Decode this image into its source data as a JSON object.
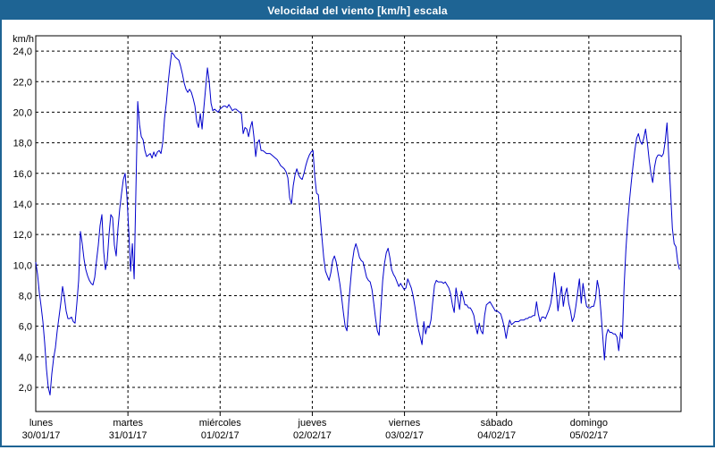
{
  "window": {
    "title": "Velocidad del viento [km/h] escala"
  },
  "colors": {
    "titlebar_bg": "#1E6494",
    "titlebar_text": "#FFFFFF",
    "window_border": "#1E6494",
    "background": "#FFFFFF",
    "plot_border": "#000000",
    "gridline": "#000000",
    "axis_text": "#000000",
    "line": "#0000CC"
  },
  "chart_data": {
    "type": "line",
    "title": "Velocidad del viento [km/h] escala",
    "ylabel": "km/h",
    "unit_label": "km/h",
    "decimal_separator": ",",
    "grid": "dashed",
    "legend_position": "none",
    "ylim": [
      0.42,
      25.0
    ],
    "y_tick_values": [
      24,
      22,
      20,
      18,
      16,
      14,
      12,
      10,
      8,
      6,
      4,
      2
    ],
    "y_tick_labels": [
      "24,0",
      "22,0",
      "20,0",
      "18,0",
      "16,0",
      "14,0",
      "12,0",
      "10,0",
      "8,0",
      "6,0",
      "4,0",
      "2,0"
    ],
    "xlim_days": [
      0,
      7
    ],
    "x_days": [
      {
        "name": "lunes",
        "date": "30/01/17"
      },
      {
        "name": "martes",
        "date": "31/01/17"
      },
      {
        "name": "miércoles",
        "date": "01/02/17"
      },
      {
        "name": "jueves",
        "date": "02/02/17"
      },
      {
        "name": "viernes",
        "date": "03/02/17"
      },
      {
        "name": "sábado",
        "date": "04/02/17"
      },
      {
        "name": "domingo",
        "date": "05/02/17"
      }
    ],
    "series": [
      {
        "name": "Velocidad del viento",
        "color": "#0000CC",
        "x_start_day": 0,
        "x_step_day": 0.0194,
        "values": [
          10.2,
          9.4,
          8.2,
          7.3,
          6.3,
          4.9,
          3.2,
          2.0,
          1.5,
          2.9,
          3.9,
          4.6,
          5.7,
          6.6,
          7.5,
          8.6,
          7.9,
          7.0,
          6.5,
          6.5,
          6.6,
          6.3,
          6.2,
          7.5,
          9.0,
          12.2,
          11.4,
          10.4,
          9.7,
          9.3,
          9.0,
          8.8,
          8.7,
          9.2,
          10.3,
          11.3,
          12.6,
          13.3,
          10.9,
          9.7,
          10.3,
          12.0,
          13.3,
          13.1,
          11.3,
          10.6,
          12.4,
          13.7,
          14.7,
          15.6,
          16.0,
          14.5,
          12.2,
          9.6,
          11.4,
          9.1,
          15.0,
          20.7,
          19.2,
          18.4,
          18.2,
          17.5,
          17.1,
          17.2,
          17.3,
          17.0,
          17.4,
          17.1,
          17.4,
          17.5,
          17.3,
          18.0,
          19.6,
          20.6,
          21.9,
          23.0,
          23.9,
          23.8,
          23.6,
          23.5,
          23.4,
          23.0,
          22.5,
          21.9,
          21.5,
          21.3,
          21.5,
          21.3,
          20.9,
          20.4,
          19.4,
          19.0,
          19.9,
          18.9,
          20.3,
          21.6,
          22.9,
          22.0,
          20.6,
          20.1,
          20.2,
          20.1,
          20.0,
          20.2,
          20.3,
          20.4,
          20.4,
          20.3,
          20.5,
          20.3,
          20.1,
          20.2,
          20.2,
          20.1,
          20.0,
          19.9,
          18.6,
          19.0,
          18.9,
          18.4,
          19.0,
          19.4,
          18.4,
          17.1,
          18.0,
          18.2,
          17.5,
          17.5,
          17.4,
          17.3,
          17.3,
          17.3,
          17.2,
          17.1,
          17.0,
          16.9,
          16.7,
          16.5,
          16.4,
          16.3,
          16.1,
          15.7,
          14.4,
          14.0,
          15.2,
          15.9,
          16.3,
          15.9,
          15.7,
          15.6,
          16.0,
          16.5,
          16.9,
          17.2,
          17.4,
          17.5,
          15.8,
          14.7,
          14.6,
          13.2,
          11.8,
          10.5,
          9.6,
          9.3,
          9.0,
          9.5,
          10.3,
          10.6,
          10.2,
          9.5,
          8.8,
          7.9,
          6.9,
          6.0,
          5.7,
          7.5,
          8.9,
          10.2,
          11.0,
          11.4,
          11.0,
          10.5,
          10.3,
          10.2,
          9.7,
          9.2,
          9.0,
          8.9,
          8.4,
          7.5,
          6.5,
          5.7,
          5.4,
          7.2,
          9.0,
          10.1,
          10.8,
          11.1,
          10.5,
          9.7,
          9.4,
          9.2,
          8.9,
          8.6,
          8.8,
          8.6,
          8.4,
          8.5,
          9.1,
          8.8,
          8.5,
          8.0,
          7.3,
          6.5,
          5.8,
          5.3,
          4.8,
          6.3,
          5.5,
          6.0,
          5.9,
          6.4,
          7.6,
          8.7,
          9.0,
          8.9,
          8.9,
          8.9,
          8.8,
          8.9,
          8.7,
          8.5,
          8.1,
          7.4,
          6.9,
          8.5,
          7.8,
          7.1,
          8.3,
          7.9,
          7.4,
          7.4,
          7.2,
          7.2,
          7.0,
          6.7,
          6.0,
          5.5,
          6.2,
          5.7,
          5.5,
          6.7,
          7.4,
          7.5,
          7.6,
          7.4,
          7.2,
          7.0,
          7.0,
          6.9,
          6.8,
          6.4,
          5.9,
          5.2,
          5.9,
          6.4,
          6.1,
          6.2,
          6.3,
          6.3,
          6.3,
          6.4,
          6.4,
          6.4,
          6.5,
          6.5,
          6.6,
          6.6,
          6.7,
          6.7,
          7.6,
          6.8,
          6.3,
          6.6,
          6.6,
          6.5,
          6.8,
          7.1,
          7.5,
          8.3,
          9.5,
          8.4,
          7.0,
          7.9,
          8.6,
          7.3,
          8.1,
          8.5,
          7.5,
          7.0,
          6.3,
          6.6,
          7.3,
          8.2,
          9.1,
          7.5,
          8.8,
          8.0,
          7.3,
          7.2,
          7.2,
          7.3,
          7.3,
          7.8,
          9.0,
          8.4,
          7.0,
          5.4,
          3.8,
          5.4,
          5.8,
          5.6,
          5.6,
          5.5,
          5.5,
          5.3,
          4.4,
          5.6,
          5.2,
          8.6,
          11.0,
          12.8,
          14.2,
          15.4,
          16.5,
          17.5,
          18.3,
          18.6,
          18.1,
          17.9,
          18.3,
          18.9,
          18.0,
          16.9,
          16.0,
          15.4,
          16.4,
          17.0,
          17.2,
          17.2,
          17.1,
          17.3,
          18.1,
          19.3,
          17.0,
          14.8,
          12.4,
          11.4,
          11.2,
          10.2,
          9.7
        ]
      }
    ]
  }
}
